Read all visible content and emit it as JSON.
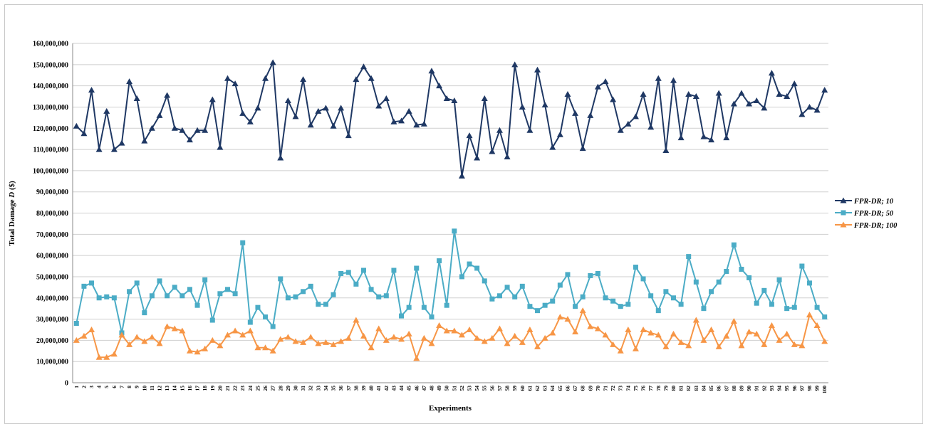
{
  "chart_data": {
    "type": "line",
    "title": "",
    "xlabel": "Experiments",
    "ylabel_prefix": "Total Damage ",
    "ylabel_var": "D",
    "ylabel_suffix": " ($)",
    "ylim": [
      0,
      160000000
    ],
    "y_ticks": [
      "0",
      "10,000,000",
      "20,000,000",
      "30,000,000",
      "40,000,000",
      "50,000,000",
      "60,000,000",
      "70,000,000",
      "80,000,000",
      "90,000,000",
      "100,000,000",
      "110,000,000",
      "120,000,000",
      "130,000,000",
      "140,000,000",
      "150,000,000",
      "160,000,000"
    ],
    "y_tick_values": [
      0,
      10000000,
      20000000,
      30000000,
      40000000,
      50000000,
      60000000,
      70000000,
      80000000,
      90000000,
      100000000,
      110000000,
      120000000,
      130000000,
      140000000,
      150000000,
      160000000
    ],
    "grid": true,
    "legend_position": "right",
    "x": [
      1,
      2,
      3,
      4,
      5,
      6,
      7,
      8,
      9,
      10,
      11,
      12,
      13,
      14,
      15,
      16,
      17,
      18,
      19,
      20,
      21,
      22,
      23,
      24,
      25,
      26,
      27,
      28,
      29,
      30,
      31,
      32,
      33,
      34,
      35,
      36,
      37,
      38,
      39,
      40,
      41,
      42,
      43,
      44,
      45,
      46,
      47,
      48,
      49,
      50,
      51,
      52,
      53,
      54,
      55,
      56,
      57,
      58,
      59,
      60,
      61,
      62,
      63,
      64,
      65,
      66,
      67,
      68,
      69,
      70,
      71,
      72,
      73,
      74,
      75,
      76,
      77,
      78,
      79,
      80,
      81,
      82,
      83,
      84,
      85,
      86,
      87,
      88,
      89,
      90,
      91,
      92,
      93,
      94,
      95,
      96,
      97,
      98,
      99,
      100
    ],
    "series": [
      {
        "name": "FPR-DR; 10",
        "color": "#1f3864",
        "marker": "triangle",
        "values_millions": [
          121,
          117.5,
          138,
          110,
          128,
          110,
          113,
          142,
          134,
          114,
          120,
          126,
          135.5,
          120,
          119,
          114.5,
          119,
          119,
          133.5,
          111,
          143.5,
          141,
          127,
          123,
          129.5,
          143.5,
          151,
          106,
          133,
          125.5,
          143,
          121.5,
          128,
          129.5,
          121,
          129.5,
          116.5,
          143,
          149,
          143.5,
          130.5,
          134,
          123,
          123.5,
          128,
          121.5,
          122,
          147,
          140,
          134,
          133,
          97.5,
          116.5,
          106,
          134,
          109,
          119,
          106.5,
          150,
          130,
          119,
          147.5,
          131,
          111,
          117,
          136,
          127,
          110.5,
          126,
          139.5,
          142,
          133.5,
          119,
          122,
          125.5,
          136,
          120.5,
          143.5,
          109.5,
          142.5,
          115.5,
          136,
          135,
          116,
          114.5,
          136.5,
          115.5,
          131.5,
          136.5,
          131.5,
          133,
          129.5,
          146,
          136,
          135,
          141,
          126.5,
          130,
          128.5,
          138
        ]
      },
      {
        "name": "FPR-DR; 50",
        "color": "#4bacc6",
        "marker": "square",
        "values_millions": [
          28,
          45.5,
          47,
          40,
          40.5,
          40,
          23.5,
          43,
          47,
          33,
          41,
          48,
          41,
          45,
          41,
          44,
          36.5,
          48.5,
          29.5,
          42,
          44,
          42,
          66,
          28.5,
          35.5,
          31,
          26.5,
          49,
          40,
          40.5,
          43,
          45.5,
          37,
          37,
          41.5,
          51.5,
          52,
          46.5,
          53,
          44,
          40.5,
          41,
          53,
          31.5,
          35.5,
          54,
          35.5,
          31,
          57.5,
          36.5,
          71.5,
          50,
          56,
          54,
          48,
          39.5,
          41,
          45,
          40.5,
          45.5,
          36,
          34,
          36.5,
          38.5,
          46,
          51,
          36,
          40.5,
          50.5,
          51.5,
          40,
          38.5,
          36,
          37,
          54.5,
          49,
          41,
          34,
          43,
          40,
          37,
          59.5,
          47.5,
          35,
          43,
          47.5,
          52.5,
          65,
          53.5,
          49.5,
          37.5,
          43.5,
          37,
          48.5,
          35,
          35.5,
          55,
          47,
          35.5,
          31
        ]
      },
      {
        "name": "FPR-DR; 100",
        "color": "#f79646",
        "marker": "triangle",
        "values_millions": [
          20,
          22,
          25,
          12,
          12,
          13.5,
          22.5,
          18,
          21.5,
          19.5,
          21.5,
          18.5,
          26.5,
          25.5,
          24.5,
          15,
          14.5,
          16,
          20,
          17.5,
          22.5,
          24.5,
          22.5,
          24.5,
          16.5,
          16.5,
          15,
          20.5,
          21.5,
          19.5,
          19,
          21.5,
          18.5,
          19,
          18,
          19.5,
          21,
          29.5,
          22,
          16.5,
          25.5,
          20,
          21.5,
          20.5,
          23,
          11.5,
          21,
          18.5,
          27,
          24.5,
          24.5,
          22.5,
          25,
          21,
          19.5,
          21,
          25.5,
          18.5,
          22,
          19,
          25,
          17,
          21,
          23.5,
          31,
          30,
          24,
          34,
          26.5,
          25.5,
          22.5,
          18,
          15,
          25,
          16,
          25,
          23.5,
          22.5,
          17,
          23,
          19,
          17.5,
          29.5,
          20,
          25,
          17,
          22,
          29,
          17.5,
          24,
          23,
          18,
          27,
          20,
          23,
          18,
          17.5,
          32,
          27,
          19.5
        ]
      }
    ]
  }
}
